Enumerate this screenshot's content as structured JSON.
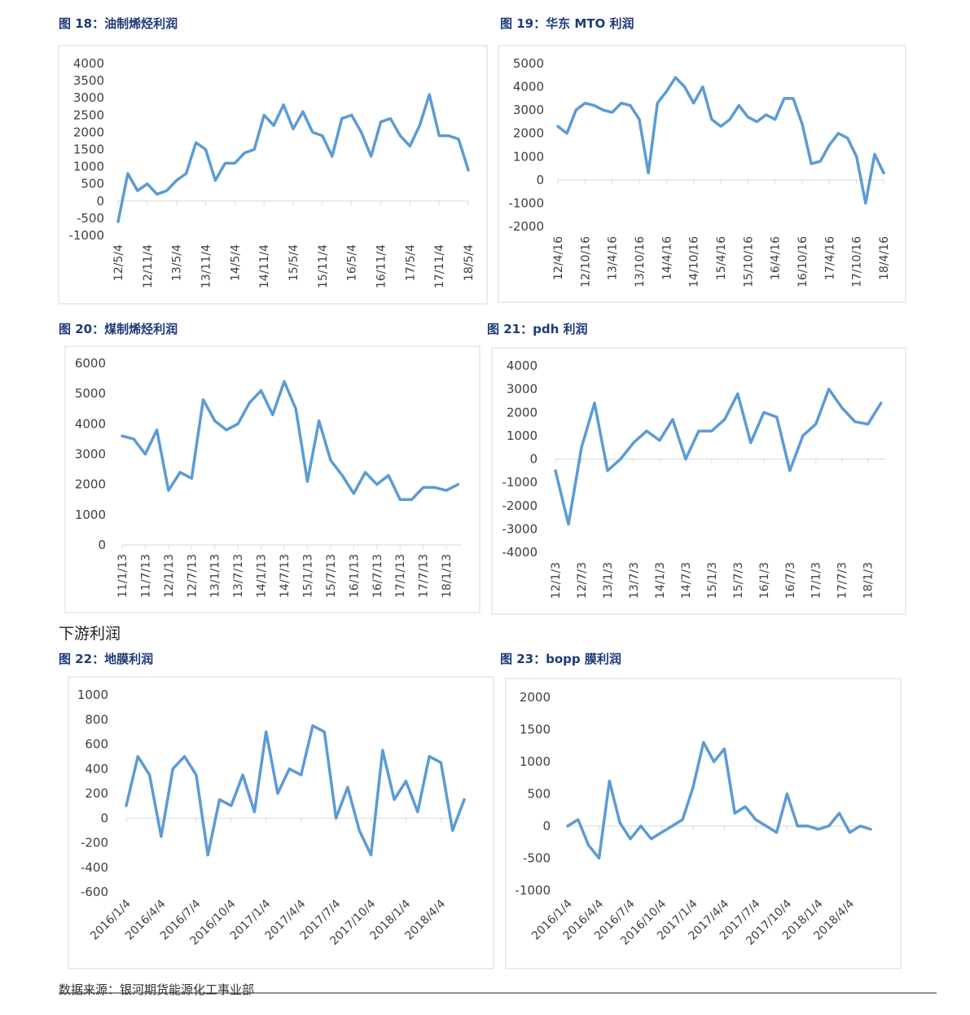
{
  "section_heading": "下游利润",
  "source": "数据来源：银河期货能源化工事业部",
  "chart_data": [
    {
      "type": "line",
      "title": "图 18：油制烯烃利润",
      "color": "#5b9bd5",
      "x": [
        "12/5/4",
        "12/7/4",
        "12/9/4",
        "12/11/4",
        "13/1/4",
        "13/3/4",
        "13/5/4",
        "13/7/4",
        "13/9/4",
        "13/11/4",
        "14/1/4",
        "14/3/4",
        "14/5/4",
        "14/7/4",
        "14/9/4",
        "14/11/4",
        "15/1/4",
        "15/3/4",
        "15/5/4",
        "15/7/4",
        "15/9/4",
        "15/11/4",
        "16/1/4",
        "16/3/4",
        "16/5/4",
        "16/7/4",
        "16/9/4",
        "16/11/4",
        "17/1/4",
        "17/3/4",
        "17/5/4",
        "17/7/4",
        "17/9/4",
        "17/11/4",
        "18/1/4",
        "18/3/4",
        "18/5/4"
      ],
      "values": [
        -600,
        800,
        300,
        500,
        200,
        300,
        600,
        800,
        1700,
        1500,
        600,
        1100,
        1100,
        1400,
        1500,
        2500,
        2200,
        2800,
        2100,
        2600,
        2000,
        1900,
        1300,
        2400,
        2500,
        2000,
        1300,
        2300,
        2400,
        1900,
        1600,
        2200,
        3100,
        1900,
        1900,
        1800,
        900
      ],
      "xlim": [
        "12/5/4",
        "18/5/4"
      ],
      "xticks": [
        "12/5/4",
        "12/11/4",
        "13/5/4",
        "13/11/4",
        "14/5/4",
        "14/11/4",
        "15/5/4",
        "15/11/4",
        "16/5/4",
        "16/11/4",
        "17/5/4",
        "17/11/4",
        "18/5/4"
      ],
      "ylim": [
        -1000,
        4000
      ],
      "yticks": [
        -1000,
        -500,
        0,
        500,
        1000,
        1500,
        2000,
        2500,
        3000,
        3500,
        4000
      ]
    },
    {
      "type": "line",
      "title": "图 19：华东 MTO 利润",
      "color": "#5b9bd5",
      "x": [
        "12/4/16",
        "12/6/16",
        "12/8/16",
        "12/10/16",
        "12/12/16",
        "13/2/16",
        "13/4/16",
        "13/6/16",
        "13/8/16",
        "13/10/16",
        "13/12/16",
        "14/2/16",
        "14/4/16",
        "14/6/16",
        "14/8/16",
        "14/10/16",
        "14/12/16",
        "15/2/16",
        "15/4/16",
        "15/6/16",
        "15/8/16",
        "15/10/16",
        "15/12/16",
        "16/2/16",
        "16/4/16",
        "16/6/16",
        "16/8/16",
        "16/10/16",
        "16/12/16",
        "17/2/16",
        "17/4/16",
        "17/6/16",
        "17/8/16",
        "17/10/16",
        "17/12/16",
        "18/2/16",
        "18/4/16"
      ],
      "values": [
        2300,
        2000,
        3000,
        3300,
        3200,
        3000,
        2900,
        3300,
        3200,
        2600,
        300,
        3300,
        3800,
        4400,
        4000,
        3300,
        4000,
        2600,
        2300,
        2600,
        3200,
        2700,
        2500,
        2800,
        2600,
        3500,
        3500,
        2400,
        700,
        800,
        1500,
        2000,
        1800,
        1000,
        -1000,
        1100,
        300
      ],
      "xlim": [
        "12/4/16",
        "18/4/16"
      ],
      "xticks": [
        "12/4/16",
        "12/10/16",
        "13/4/16",
        "13/10/16",
        "14/4/16",
        "14/10/16",
        "15/4/16",
        "15/10/16",
        "16/4/16",
        "16/10/16",
        "17/4/16",
        "17/10/16",
        "18/4/16"
      ],
      "ylim": [
        -2000,
        5000
      ],
      "yticks": [
        -2000,
        -1000,
        0,
        1000,
        2000,
        3000,
        4000,
        5000
      ]
    },
    {
      "type": "line",
      "title": "图 20：煤制烯烃利润",
      "color": "#5b9bd5",
      "x": [
        "11/1/13",
        "11/4/13",
        "11/7/13",
        "11/10/13",
        "12/1/13",
        "12/4/13",
        "12/7/13",
        "12/10/13",
        "13/1/13",
        "13/4/13",
        "13/7/13",
        "13/10/13",
        "14/1/13",
        "14/4/13",
        "14/7/13",
        "14/10/13",
        "15/1/13",
        "15/4/13",
        "15/7/13",
        "15/10/13",
        "16/1/13",
        "16/4/13",
        "16/7/13",
        "16/10/13",
        "17/1/13",
        "17/4/13",
        "17/7/13",
        "17/10/13",
        "18/1/13",
        "18/4/13"
      ],
      "values": [
        3600,
        3500,
        3000,
        3800,
        1800,
        2400,
        2200,
        4800,
        4100,
        3800,
        4000,
        4700,
        5100,
        4300,
        5400,
        4500,
        2100,
        4100,
        2800,
        2300,
        1700,
        2400,
        2000,
        2300,
        1500,
        1500,
        1900,
        1900,
        1800,
        2000
      ],
      "xlim": [
        "11/1/13",
        "18/5/13"
      ],
      "xticks": [
        "11/1/13",
        "11/7/13",
        "12/1/13",
        "12/7/13",
        "13/1/13",
        "13/7/13",
        "14/1/13",
        "14/7/13",
        "15/1/13",
        "15/7/13",
        "16/1/13",
        "16/7/13",
        "17/1/13",
        "17/7/13",
        "18/1/13"
      ],
      "ylim": [
        0,
        6000
      ],
      "yticks": [
        0,
        1000,
        2000,
        3000,
        4000,
        5000,
        6000
      ]
    },
    {
      "type": "line",
      "title": "图 21：pdh 利润",
      "color": "#5b9bd5",
      "x": [
        "12/1/3",
        "12/4/3",
        "12/7/3",
        "12/10/3",
        "13/1/3",
        "13/4/3",
        "13/7/3",
        "13/10/3",
        "14/1/3",
        "14/4/3",
        "14/7/3",
        "14/10/3",
        "15/1/3",
        "15/4/3",
        "15/7/3",
        "15/10/3",
        "16/1/3",
        "16/4/3",
        "16/7/3",
        "16/10/3",
        "17/1/3",
        "17/4/3",
        "17/7/3",
        "17/10/3",
        "18/1/3",
        "18/4/3"
      ],
      "values": [
        -500,
        -2800,
        500,
        2400,
        -500,
        0,
        700,
        1200,
        800,
        1700,
        0,
        1200,
        1200,
        1700,
        2800,
        700,
        2000,
        1800,
        -500,
        1000,
        1500,
        3000,
        2200,
        1600,
        1500,
        2400
      ],
      "xlim": [
        "12/1/3",
        "18/5/3"
      ],
      "xticks": [
        "12/1/3",
        "12/7/3",
        "13/1/3",
        "13/7/3",
        "14/1/3",
        "14/7/3",
        "15/1/3",
        "15/7/3",
        "16/1/3",
        "16/7/3",
        "17/1/3",
        "17/7/3",
        "18/1/3"
      ],
      "ylim": [
        -4000,
        4000
      ],
      "yticks": [
        -4000,
        -3000,
        -2000,
        -1000,
        0,
        1000,
        2000,
        3000,
        4000
      ]
    },
    {
      "type": "line",
      "title": "图 22：地膜利润",
      "color": "#5b9bd5",
      "x": [
        "2016/1/4",
        "2016/2/4",
        "2016/3/4",
        "2016/4/4",
        "2016/5/4",
        "2016/6/4",
        "2016/7/4",
        "2016/8/4",
        "2016/9/4",
        "2016/10/4",
        "2016/11/4",
        "2016/12/4",
        "2017/1/4",
        "2017/2/4",
        "2017/3/4",
        "2017/4/4",
        "2017/5/4",
        "2017/6/4",
        "2017/7/4",
        "2017/8/4",
        "2017/9/4",
        "2017/10/4",
        "2017/11/4",
        "2017/12/4",
        "2018/1/4",
        "2018/2/4",
        "2018/3/4",
        "2018/4/4",
        "2018/5/4",
        "2018/6/4"
      ],
      "values": [
        100,
        500,
        350,
        -150,
        400,
        500,
        350,
        -300,
        150,
        100,
        350,
        50,
        700,
        200,
        400,
        350,
        750,
        700,
        0,
        250,
        -100,
        -300,
        550,
        150,
        300,
        50,
        500,
        450,
        -100,
        150
      ],
      "xlim": [
        "2016/1/4",
        "2018/6/4"
      ],
      "xticks": [
        "2016/1/4",
        "2016/4/4",
        "2016/7/4",
        "2016/10/4",
        "2017/1/4",
        "2017/4/4",
        "2017/7/4",
        "2017/10/4",
        "2018/1/4",
        "2018/4/4"
      ],
      "ylim": [
        -600,
        1000
      ],
      "yticks": [
        -600,
        -400,
        -200,
        0,
        200,
        400,
        600,
        800,
        1000
      ]
    },
    {
      "type": "line",
      "title": "图 23：bopp 膜利润",
      "color": "#5b9bd5",
      "x": [
        "2016/1/4",
        "2016/2/4",
        "2016/3/4",
        "2016/4/4",
        "2016/5/4",
        "2016/6/4",
        "2016/7/4",
        "2016/8/4",
        "2016/9/4",
        "2016/10/4",
        "2016/11/4",
        "2016/12/4",
        "2017/1/4",
        "2017/2/4",
        "2017/3/4",
        "2017/4/4",
        "2017/5/4",
        "2017/6/4",
        "2017/7/4",
        "2017/8/4",
        "2017/9/4",
        "2017/10/4",
        "2017/11/4",
        "2017/12/4",
        "2018/1/4",
        "2018/2/4",
        "2018/3/4",
        "2018/4/4",
        "2018/5/4",
        "2018/6/4"
      ],
      "values": [
        0,
        100,
        -300,
        -500,
        700,
        50,
        -200,
        0,
        -200,
        -100,
        0,
        100,
        600,
        1300,
        1000,
        1200,
        200,
        300,
        100,
        0,
        -100,
        500,
        0,
        0,
        -50,
        0,
        200,
        -100,
        0,
        -50
      ],
      "xlim": [
        "2016/1/4",
        "2018/6/4"
      ],
      "xticks": [
        "2016/1/4",
        "2016/4/4",
        "2016/7/4",
        "2016/10/4",
        "2017/1/4",
        "2017/4/4",
        "2017/7/4",
        "2017/10/4",
        "2018/1/4",
        "2018/4/4"
      ],
      "ylim": [
        -1000,
        2000
      ],
      "yticks": [
        -1000,
        -500,
        0,
        500,
        1000,
        1500,
        2000
      ]
    }
  ]
}
